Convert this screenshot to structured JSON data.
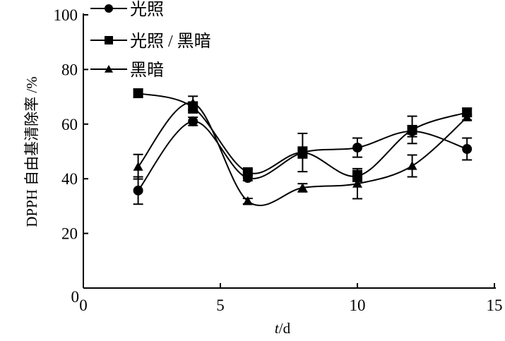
{
  "chart_data": {
    "type": "line",
    "xlabel_italic": "t",
    "xlabel_rest": "/d",
    "ylabel": "DPPH 自由基清除率 /%",
    "xlim": [
      0,
      15
    ],
    "ylim": [
      0,
      100
    ],
    "xticks": [
      0,
      5,
      10,
      15
    ],
    "yticks": [
      20,
      40,
      60,
      80,
      100
    ],
    "grid": false,
    "legend_position": "top-left",
    "x": [
      2,
      4,
      6,
      8,
      10,
      12,
      14
    ],
    "series": [
      {
        "name": "光照",
        "marker": "circle",
        "values": [
          35.7,
          61.0,
          40.3,
          49.6,
          51.4,
          57.4,
          50.9
        ],
        "errors": [
          5,
          1.5,
          1,
          2,
          3.5,
          2,
          4
        ]
      },
      {
        "name": "光照 / 黑暗",
        "marker": "square",
        "values": [
          71.3,
          66.1,
          42.4,
          49.6,
          41.0,
          57.9,
          64.3
        ],
        "errors": [
          1.5,
          2,
          1,
          7,
          2,
          5,
          1.5
        ]
      },
      {
        "name": "黑暗",
        "marker": "triangle",
        "values": [
          44.4,
          67.7,
          31.8,
          36.7,
          38.2,
          44.7,
          62.5
        ],
        "errors": [
          4.5,
          2.5,
          1,
          1.5,
          5.5,
          4,
          1
        ]
      }
    ]
  }
}
